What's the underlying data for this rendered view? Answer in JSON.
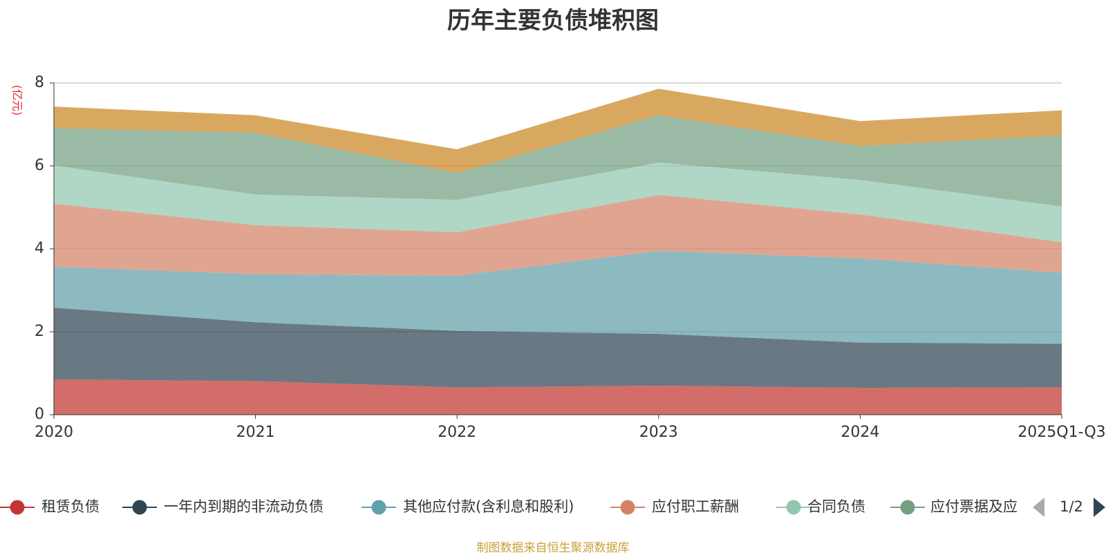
{
  "chart_data": {
    "type": "area",
    "stacked": true,
    "title": "历年主要负债堆积图",
    "ylabel": "(亿元)",
    "xlabel": "",
    "ylim": [
      0,
      8
    ],
    "yticks": [
      0,
      2,
      4,
      6,
      8
    ],
    "categories": [
      "2020",
      "2021",
      "2022",
      "2023",
      "2024",
      "2025Q1-Q3"
    ],
    "series": [
      {
        "name": "租赁负债",
        "color": "#c23531",
        "values": [
          0.85,
          0.81,
          0.66,
          0.7,
          0.65,
          0.66
        ]
      },
      {
        "name": "一年内到期的非流动负债",
        "color": "#2f4554",
        "values": [
          1.73,
          1.42,
          1.36,
          1.25,
          1.09,
          1.05
        ]
      },
      {
        "name": "其他应付款(含利息和股利)",
        "color": "#61a0a8",
        "values": [
          0.99,
          1.16,
          1.33,
          2.0,
          2.03,
          1.71
        ]
      },
      {
        "name": "应付职工薪酬",
        "color": "#d48265",
        "values": [
          1.52,
          1.18,
          1.05,
          1.35,
          1.06,
          0.74
        ]
      },
      {
        "name": "合同负债",
        "color": "#91c7ae",
        "values": [
          0.92,
          0.74,
          0.78,
          0.78,
          0.83,
          0.86
        ]
      },
      {
        "name": "应付票据及应付账款",
        "color": "#749f83",
        "values": [
          0.9,
          1.49,
          0.65,
          1.14,
          0.82,
          1.72
        ]
      },
      {
        "name": "",
        "color": "#ca8622",
        "values": [
          0.52,
          0.42,
          0.57,
          0.64,
          0.6,
          0.6
        ]
      }
    ]
  },
  "legend": {
    "items": [
      "租赁负债",
      "一年内到期的非流动负债",
      "其他应付款(含利息和股利)",
      "应付职工薪酬",
      "合同负债",
      "应付票据及应"
    ],
    "page": "1/2"
  },
  "footer": {
    "source": "制图数据来自恒生聚源数据库"
  }
}
